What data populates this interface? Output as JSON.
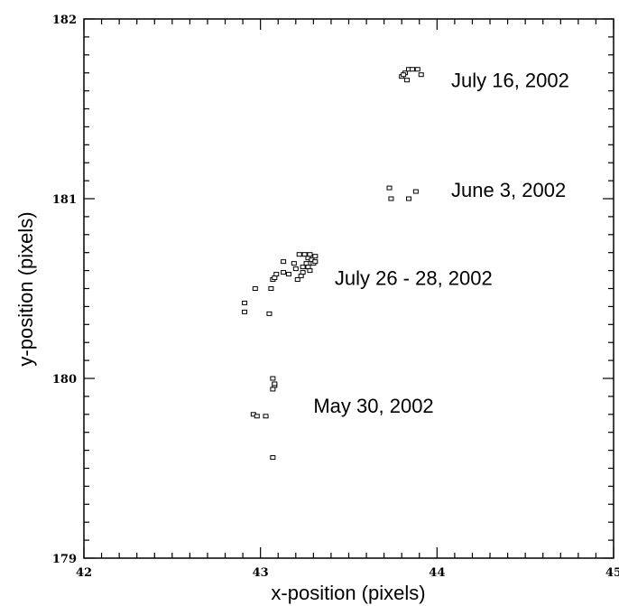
{
  "chart_data": {
    "type": "scatter",
    "xlabel": "x-position (pixels)",
    "ylabel": "y-position (pixels)",
    "xlim": [
      42,
      45
    ],
    "ylim": [
      179,
      182
    ],
    "x_ticks": [
      "42",
      "43",
      "44",
      "45"
    ],
    "y_ticks": [
      "179",
      "180",
      "181",
      "182"
    ],
    "x_minor_step": 0.1,
    "y_minor_step": 0.1,
    "grid": false,
    "marker": "open-square",
    "annotations": [
      {
        "text": "July 16, 2002",
        "x": 44.08,
        "y": 181.66
      },
      {
        "text": "June 3, 2002",
        "x": 44.08,
        "y": 181.05
      },
      {
        "text": "July 26 - 28, 2002",
        "x": 43.42,
        "y": 180.56
      },
      {
        "text": "May 30, 2002",
        "x": 43.3,
        "y": 179.85
      }
    ],
    "series": [
      {
        "points": [
          [
            43.8,
            181.68
          ],
          [
            43.82,
            181.7
          ],
          [
            43.84,
            181.72
          ],
          [
            43.86,
            181.72
          ],
          [
            43.89,
            181.72
          ],
          [
            43.91,
            181.69
          ],
          [
            43.83,
            181.66
          ],
          [
            43.81,
            181.69
          ]
        ]
      },
      {
        "points": [
          [
            43.73,
            181.06
          ],
          [
            43.74,
            181.0
          ],
          [
            43.84,
            181.0
          ],
          [
            43.88,
            181.04
          ]
        ]
      },
      {
        "points": [
          [
            42.91,
            180.42
          ],
          [
            42.91,
            180.37
          ],
          [
            42.97,
            180.5
          ],
          [
            43.05,
            180.36
          ],
          [
            43.06,
            180.5
          ],
          [
            43.07,
            180.55
          ],
          [
            43.08,
            180.56
          ],
          [
            43.09,
            180.58
          ],
          [
            43.13,
            180.59
          ],
          [
            43.13,
            180.65
          ],
          [
            43.16,
            180.58
          ],
          [
            43.19,
            180.64
          ],
          [
            43.2,
            180.61
          ],
          [
            43.21,
            180.55
          ],
          [
            43.22,
            180.69
          ],
          [
            43.23,
            180.57
          ],
          [
            43.24,
            180.59
          ],
          [
            43.24,
            180.62
          ],
          [
            43.25,
            180.69
          ],
          [
            43.26,
            180.64
          ],
          [
            43.27,
            180.62
          ],
          [
            43.27,
            180.67
          ],
          [
            43.28,
            180.69
          ],
          [
            43.29,
            180.66
          ],
          [
            43.3,
            180.64
          ],
          [
            43.31,
            180.68
          ],
          [
            43.31,
            180.65
          ],
          [
            43.28,
            180.6
          ]
        ]
      },
      {
        "points": [
          [
            43.07,
            180.0
          ],
          [
            43.08,
            179.96
          ],
          [
            43.08,
            179.97
          ],
          [
            43.07,
            179.94
          ],
          [
            42.96,
            179.8
          ],
          [
            42.98,
            179.79
          ],
          [
            43.03,
            179.79
          ],
          [
            43.07,
            179.56
          ]
        ]
      }
    ]
  }
}
